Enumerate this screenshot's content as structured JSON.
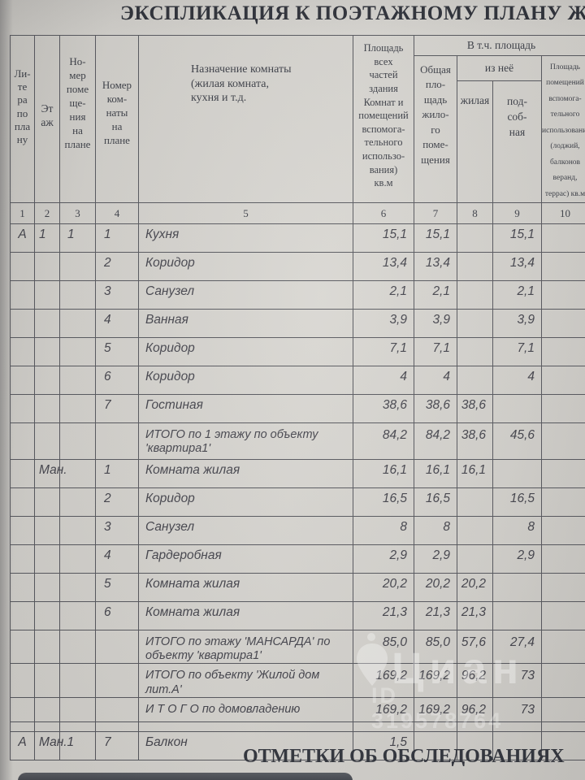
{
  "colors": {
    "paper": "#d5d3ce",
    "ink": "#3b3e46",
    "line": "#56575d",
    "watermark": "#ffffff"
  },
  "title": "ЭКСПЛИКАЦИЯ К ПОЭТАЖНОМУ ПЛАНУ ЖИЛОГО",
  "footer_title": "ОТМЕТКИ ОБ ОБСЛЕДОВАНИЯХ",
  "watermark": {
    "icon": "map-pin-icon",
    "brand": "Циан",
    "id_text": "ID 319578764"
  },
  "table": {
    "group_header": "В т.ч. площадь",
    "subgroup_header": "из неё",
    "columns": [
      {
        "num": "1",
        "label": "Ли-\nте\nра\nпо\nпла\nну"
      },
      {
        "num": "2",
        "label": "Эт\nаж"
      },
      {
        "num": "3",
        "label": "Но-\nмер\nпоме\nще-\nния\nна\nплане"
      },
      {
        "num": "4",
        "label": "Номер\nком-\nнаты\nна\nплане"
      },
      {
        "num": "5",
        "label": "Назначение комнаты\n(жилая комната,\nкухня и т.д."
      },
      {
        "num": "6",
        "label": "Площадь\nвсех\nчастей\nздания\nКомнат и\nпомещений\nвспомога-\nтельного\nиспользо-\nвания)\nкв.м"
      },
      {
        "num": "7",
        "label": "Общая\nпло-\nщадь\nжило-\nго\nпоме-\nщения"
      },
      {
        "num": "8",
        "label": "жилая"
      },
      {
        "num": "9",
        "label": "под-\nсоб-\nная"
      },
      {
        "num": "10",
        "label": "Площадь\nпомещений\nвспомога-\nтельного\nиспользования\n(лоджий,\nбалконов\nверанд,\nтеррас) кв.м"
      }
    ],
    "rows": [
      {
        "kind": "room",
        "cells": [
          "А",
          "1",
          "1",
          "1",
          "Кухня",
          "15,1",
          "15,1",
          "",
          "15,1",
          ""
        ]
      },
      {
        "kind": "room",
        "cells": [
          "",
          "",
          "",
          "2",
          "Коридор",
          "13,4",
          "13,4",
          "",
          "13,4",
          ""
        ]
      },
      {
        "kind": "room",
        "cells": [
          "",
          "",
          "",
          "3",
          "Санузел",
          "2,1",
          "2,1",
          "",
          "2,1",
          ""
        ]
      },
      {
        "kind": "room",
        "cells": [
          "",
          "",
          "",
          "4",
          "Ванная",
          "3,9",
          "3,9",
          "",
          "3,9",
          ""
        ]
      },
      {
        "kind": "room",
        "cells": [
          "",
          "",
          "",
          "5",
          "Коридор",
          "7,1",
          "7,1",
          "",
          "7,1",
          ""
        ]
      },
      {
        "kind": "room",
        "cells": [
          "",
          "",
          "",
          "6",
          "Коридор",
          "4",
          "4",
          "",
          "4",
          ""
        ]
      },
      {
        "kind": "room",
        "cells": [
          "",
          "",
          "",
          "7",
          "Гостиная",
          "38,6",
          "38,6",
          "38,6",
          "",
          ""
        ]
      },
      {
        "kind": "total",
        "cells": [
          "",
          "",
          "",
          "",
          "ИТОГО по 1 этажу  по объекту\n'квартира1'",
          "84,2",
          "84,2",
          "38,6",
          "45,6",
          ""
        ]
      },
      {
        "kind": "room",
        "cells": [
          "",
          "Ман.",
          "",
          "1",
          "Комната жилая",
          "16,1",
          "16,1",
          "16,1",
          "",
          ""
        ]
      },
      {
        "kind": "room",
        "cells": [
          "",
          "",
          "",
          "2",
          "Коридор",
          "16,5",
          "16,5",
          "",
          "16,5",
          ""
        ]
      },
      {
        "kind": "room",
        "cells": [
          "",
          "",
          "",
          "3",
          "Санузел",
          "8",
          "8",
          "",
          "8",
          ""
        ]
      },
      {
        "kind": "room",
        "cells": [
          "",
          "",
          "",
          "4",
          "Гардеробная",
          "2,9",
          "2,9",
          "",
          "2,9",
          ""
        ]
      },
      {
        "kind": "room",
        "cells": [
          "",
          "",
          "",
          "5",
          "Комната жилая",
          "20,2",
          "20,2",
          "20,2",
          "",
          ""
        ]
      },
      {
        "kind": "room",
        "cells": [
          "",
          "",
          "",
          "6",
          "Комната жилая",
          "21,3",
          "21,3",
          "21,3",
          "",
          ""
        ]
      },
      {
        "kind": "total",
        "cells": [
          "",
          "",
          "",
          "",
          "ИТОГО по этажу 'МАНСАРДА' по\nобъекту 'квартира1'",
          "85,0",
          "85,0",
          "57,6",
          "27,4",
          ""
        ]
      },
      {
        "kind": "total",
        "cells": [
          "",
          "",
          "",
          "",
          "ИТОГО по объекту 'Жилой дом\nлит.А'",
          "169,2",
          "169,2",
          "96,2",
          "73",
          ""
        ]
      },
      {
        "kind": "total",
        "cells": [
          "",
          "",
          "",
          "",
          "И Т О Г О по домовладению",
          "169,2",
          "169,2",
          "96,2",
          "73",
          ""
        ]
      },
      {
        "kind": "spacer",
        "cells": [
          "",
          "",
          "",
          "",
          "",
          "",
          "",
          "",
          "",
          ""
        ]
      },
      {
        "kind": "room",
        "cells": [
          "А",
          "Ман.1",
          "",
          "7",
          "Балкон",
          "1,5",
          "",
          "",
          "",
          ""
        ]
      }
    ]
  }
}
